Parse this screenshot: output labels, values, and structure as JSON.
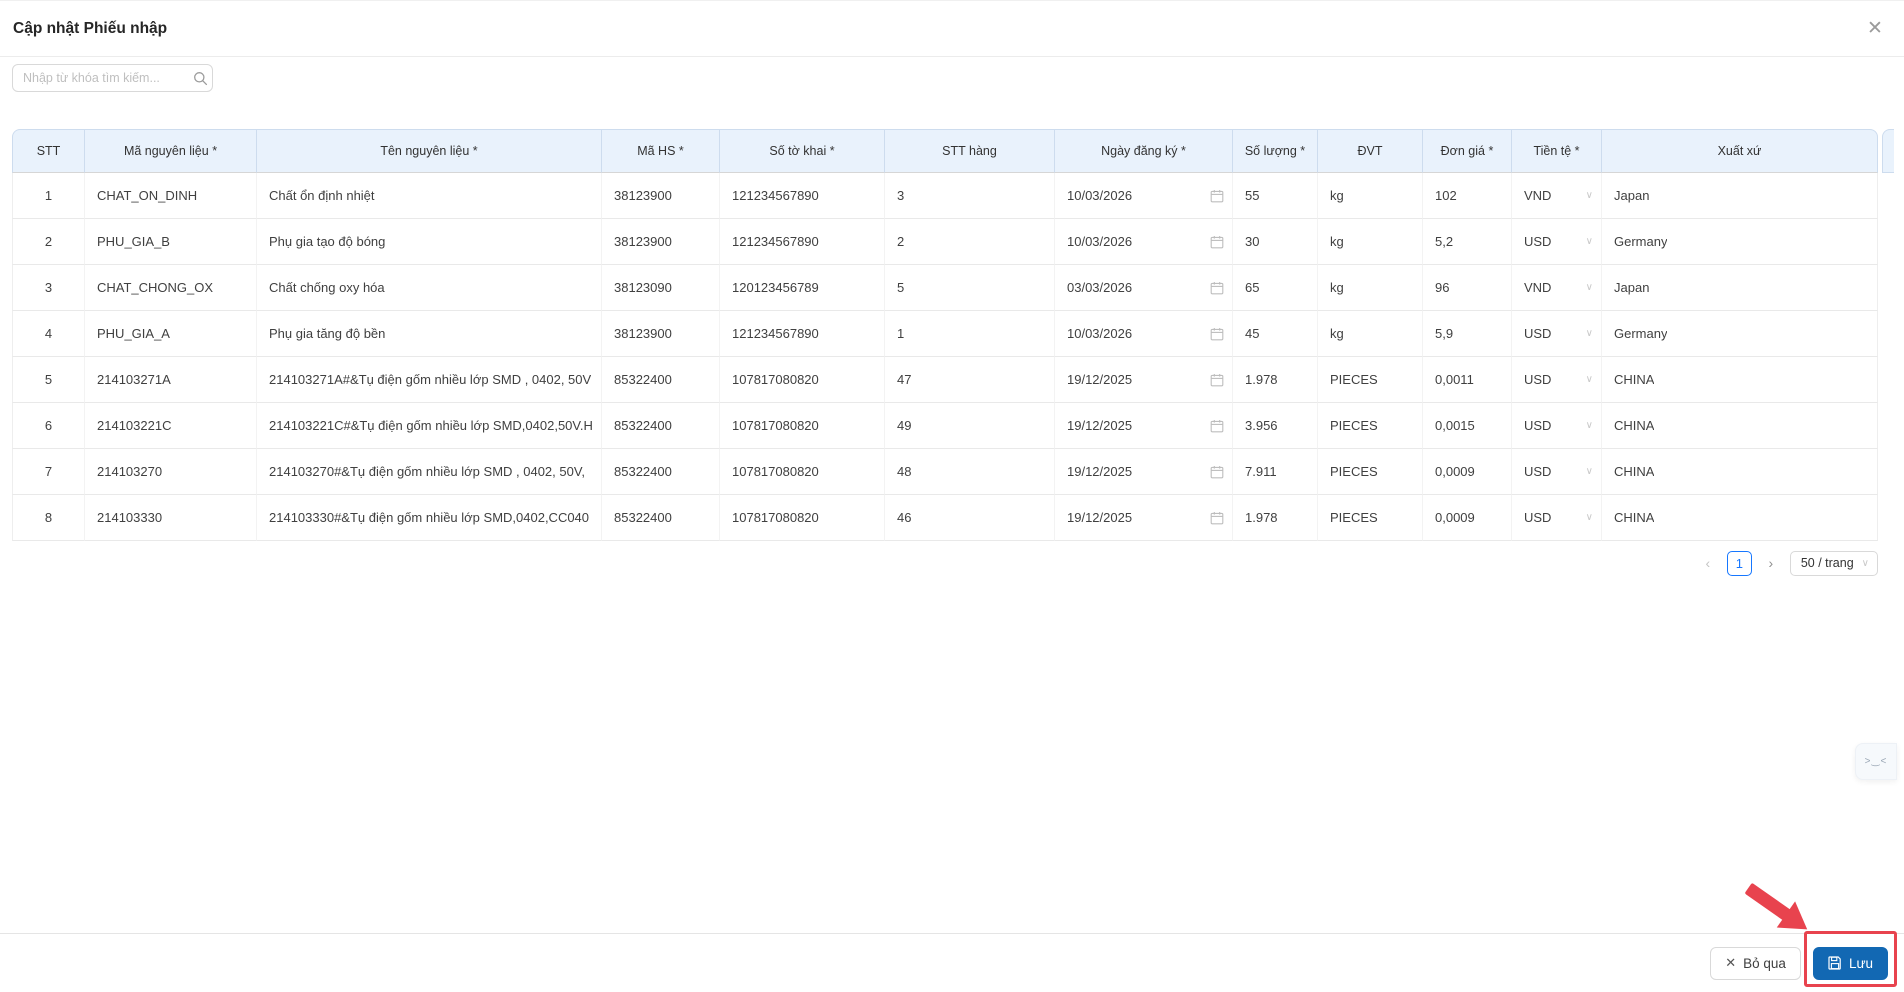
{
  "modal": {
    "title": "Cập nhật Phiếu nhập",
    "close_glyph": "✕"
  },
  "search": {
    "placeholder": "Nhập từ khóa tìm kiếm...",
    "value": "",
    "icon": "search-icon"
  },
  "table": {
    "columns": [
      "STT",
      "Mã nguyên liệu *",
      "Tên nguyên liệu *",
      "Mã HS *",
      "Số tờ khai *",
      "STT hàng",
      "Ngày đăng ký *",
      "Số lượng *",
      "ĐVT",
      "Đơn giá *",
      "Tiền tệ *",
      "Xuất xứ"
    ],
    "rows": [
      {
        "stt": "1",
        "ma_nl": "CHAT_ON_DINH",
        "ten_nl": "Chất ổn định nhiệt",
        "ma_hs": "38123900",
        "so_to_khai": "121234567890",
        "stt_hang": "3",
        "ngay_dk": "10/03/2026",
        "so_luong": "55",
        "dvt": "kg",
        "don_gia": "102",
        "tien_te": "VND",
        "xuat_xu": "Japan"
      },
      {
        "stt": "2",
        "ma_nl": "PHU_GIA_B",
        "ten_nl": "Phụ gia tạo độ bóng",
        "ma_hs": "38123900",
        "so_to_khai": "121234567890",
        "stt_hang": "2",
        "ngay_dk": "10/03/2026",
        "so_luong": "30",
        "dvt": "kg",
        "don_gia": "5,2",
        "tien_te": "USD",
        "xuat_xu": "Germany"
      },
      {
        "stt": "3",
        "ma_nl": "CHAT_CHONG_OX",
        "ten_nl": "Chất chống oxy hóa",
        "ma_hs": "38123090",
        "so_to_khai": "120123456789",
        "stt_hang": "5",
        "ngay_dk": "03/03/2026",
        "so_luong": "65",
        "dvt": "kg",
        "don_gia": "96",
        "tien_te": "VND",
        "xuat_xu": "Japan"
      },
      {
        "stt": "4",
        "ma_nl": "PHU_GIA_A",
        "ten_nl": "Phụ gia tăng độ bền",
        "ma_hs": "38123900",
        "so_to_khai": "121234567890",
        "stt_hang": "1",
        "ngay_dk": "10/03/2026",
        "so_luong": "45",
        "dvt": "kg",
        "don_gia": "5,9",
        "tien_te": "USD",
        "xuat_xu": "Germany"
      },
      {
        "stt": "5",
        "ma_nl": "214103271A",
        "ten_nl": "214103271A#&Tụ điện gốm nhiều lớp SMD , 0402, 50V",
        "ma_hs": "85322400",
        "so_to_khai": "107817080820",
        "stt_hang": "47",
        "ngay_dk": "19/12/2025",
        "so_luong": "1.978",
        "dvt": "PIECES",
        "don_gia": "0,0011",
        "tien_te": "USD",
        "xuat_xu": "CHINA"
      },
      {
        "stt": "6",
        "ma_nl": "214103221C",
        "ten_nl": "214103221C#&Tụ điện gốm nhiều lớp SMD,0402,50V.H",
        "ma_hs": "85322400",
        "so_to_khai": "107817080820",
        "stt_hang": "49",
        "ngay_dk": "19/12/2025",
        "so_luong": "3.956",
        "dvt": "PIECES",
        "don_gia": "0,0015",
        "tien_te": "USD",
        "xuat_xu": "CHINA"
      },
      {
        "stt": "7",
        "ma_nl": "214103270",
        "ten_nl": "214103270#&Tụ điện gốm nhiều lớp SMD , 0402, 50V,",
        "ma_hs": "85322400",
        "so_to_khai": "107817080820",
        "stt_hang": "48",
        "ngay_dk": "19/12/2025",
        "so_luong": "7.911",
        "dvt": "PIECES",
        "don_gia": "0,0009",
        "tien_te": "USD",
        "xuat_xu": "CHINA"
      },
      {
        "stt": "8",
        "ma_nl": "214103330",
        "ten_nl": "214103330#&Tụ điện gốm nhiều lớp SMD,0402,CC040",
        "ma_hs": "85322400",
        "so_to_khai": "107817080820",
        "stt_hang": "46",
        "ngay_dk": "19/12/2025",
        "so_luong": "1.978",
        "dvt": "PIECES",
        "don_gia": "0,0009",
        "tien_te": "USD",
        "xuat_xu": "CHINA"
      }
    ]
  },
  "pagination": {
    "prev_glyph": "‹",
    "next_glyph": "›",
    "current_page": "1",
    "page_size_label": "50 / trang"
  },
  "footer": {
    "cancel_label": "Bỏ qua",
    "cancel_glyph": "✕",
    "save_label": "Lưu"
  },
  "floating_widget": {
    "glyph": ">‿<"
  },
  "colors": {
    "accent_blue": "#1677ff",
    "save_button_blue": "#1268b3",
    "annotation_red": "#e8434e",
    "table_header_bg": "#e9f2fc"
  }
}
